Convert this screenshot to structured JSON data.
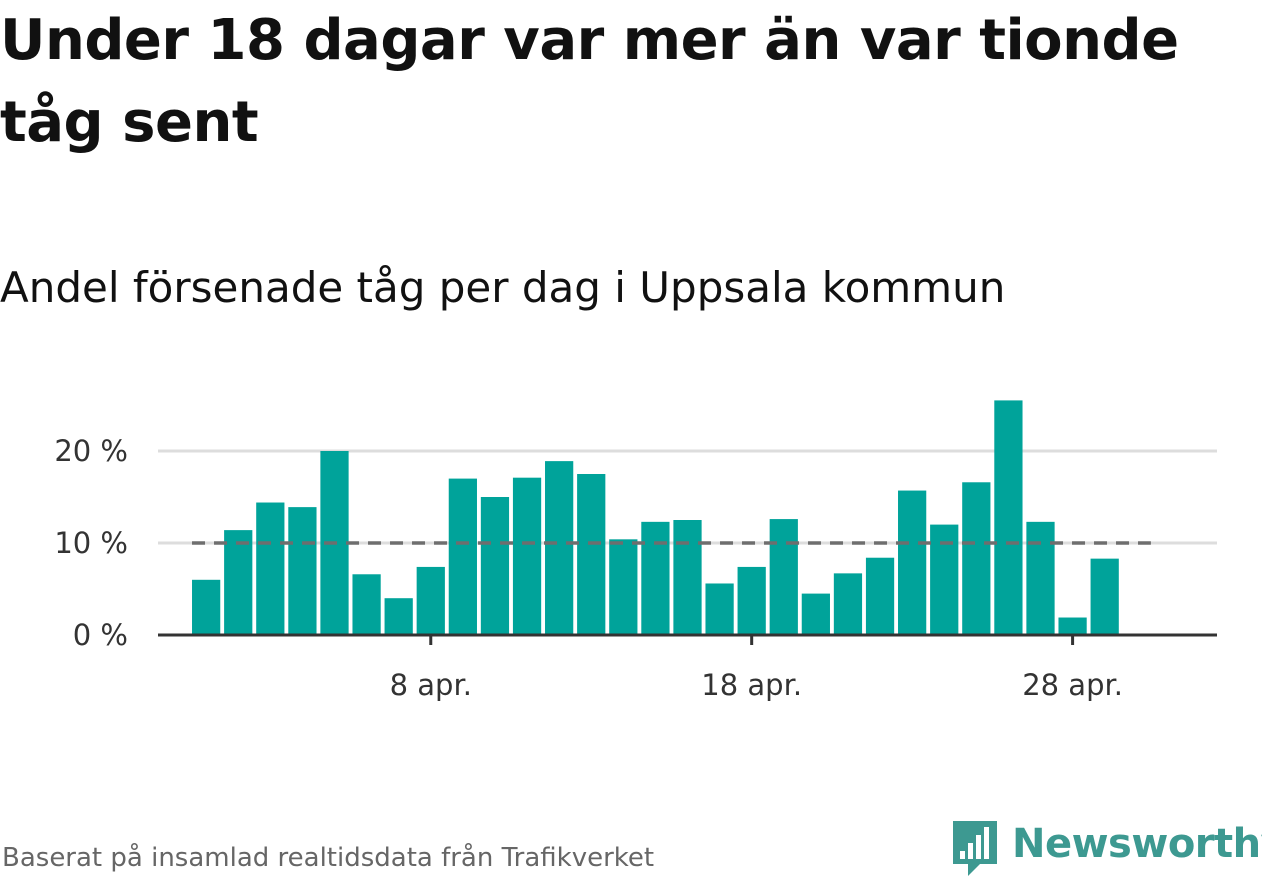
{
  "headline": "Under 18 dagar var mer än var tionde tåg sent",
  "subtitle": "Andel försenade tåg per dag i Uppsala kommun",
  "source": "Baserat på insamlad realtidsdata från Trafikverket",
  "brand": {
    "name": "Newsworthy",
    "color": "#3d9991",
    "icon": "bar-chart-speech-bubble-icon"
  },
  "colors": {
    "bar": "#00a39a",
    "reference": "#6e6e6e",
    "grid": "#dddddd",
    "axis": "#333333"
  },
  "chart_data": {
    "type": "bar",
    "title": "Andel försenade tåg per dag i Uppsala kommun",
    "xlabel": "",
    "ylabel": "",
    "x_start_day": 1,
    "x_end_day": 30,
    "x_domain_days": [
      -0.5,
      32.5
    ],
    "days": [
      1,
      2,
      3,
      4,
      5,
      6,
      7,
      8,
      9,
      10,
      11,
      12,
      13,
      14,
      15,
      16,
      17,
      18,
      19,
      20,
      21,
      22,
      23,
      24,
      25,
      26,
      27,
      28,
      29,
      30
    ],
    "values": [
      6.0,
      11.4,
      14.4,
      13.9,
      20.0,
      6.6,
      4.0,
      7.4,
      17.0,
      15.0,
      17.1,
      18.9,
      17.5,
      10.4,
      12.3,
      12.5,
      5.6,
      7.4,
      12.6,
      4.5,
      6.7,
      8.4,
      15.7,
      12.0,
      16.6,
      25.5,
      12.3,
      1.9,
      8.3,
      0
    ],
    "ylim": [
      0,
      27
    ],
    "y_ticks": [
      {
        "value": 0,
        "label": "0 %"
      },
      {
        "value": 10,
        "label": "10 %"
      },
      {
        "value": 20,
        "label": "20 %"
      }
    ],
    "x_ticks": [
      {
        "day": 8,
        "label": "8 apr."
      },
      {
        "day": 18,
        "label": "18 apr."
      },
      {
        "day": 28,
        "label": "28 apr."
      }
    ],
    "reference_line": {
      "value": 10,
      "style": "dashed"
    },
    "grid": true,
    "legend": false
  }
}
